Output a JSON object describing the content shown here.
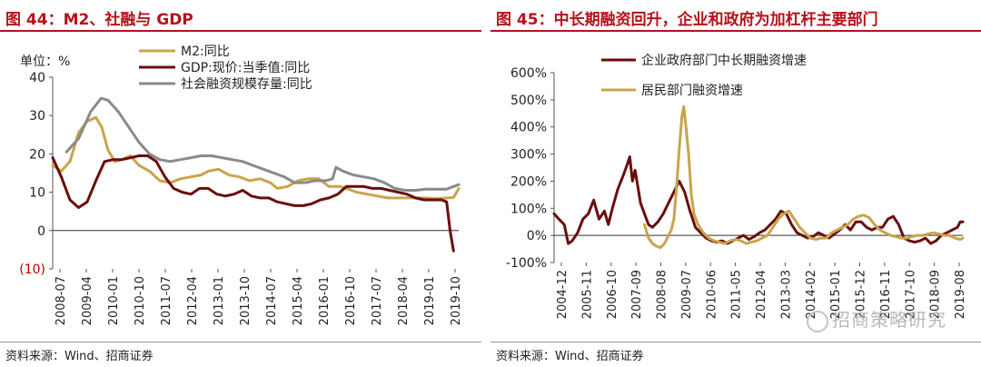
{
  "left": {
    "title": "图 44：M2、社融与 GDP",
    "source": "资料来源：Wind、招商证券",
    "unit_label": "单位：%"
  },
  "right": {
    "title": "图 45：中长期融资回升，企业和政府为加杠杆主要部门",
    "source": "资料来源：Wind、招商证券",
    "watermark": "招商策略研究"
  },
  "colors": {
    "accent": "#b5121b",
    "m2": "#c9a44a",
    "gdp": "#6b0d0d",
    "social": "#8a8a8a",
    "negative_tick": "#c00000"
  },
  "chart_data": [
    {
      "type": "line",
      "ylim": [
        -10,
        40
      ],
      "yticks": [
        -10,
        0,
        10,
        20,
        30,
        40
      ],
      "ytick_labels": [
        "(10)",
        "0",
        "10",
        "20",
        "30",
        "40"
      ],
      "xlim": [
        2008.5,
        2020.25
      ],
      "xtick_labels": [
        "2008-07",
        "2009-04",
        "2010-01",
        "2010-10",
        "2011-07",
        "2012-04",
        "2013-01",
        "2013-10",
        "2014-07",
        "2015-04",
        "2016-01",
        "2016-10",
        "2017-07",
        "2018-04",
        "2019-01",
        "2019-10"
      ],
      "legend": "top-center",
      "series": [
        {
          "name": "M2:同比",
          "color": "#c9a44a",
          "x": [
            2008.5,
            2008.75,
            2009.0,
            2009.25,
            2009.5,
            2009.75,
            2009.92,
            2010.1,
            2010.3,
            2010.5,
            2010.75,
            2011.0,
            2011.3,
            2011.6,
            2011.9,
            2012.2,
            2012.5,
            2012.8,
            2013.0,
            2013.3,
            2013.6,
            2013.9,
            2014.2,
            2014.5,
            2014.8,
            2015.0,
            2015.3,
            2015.6,
            2015.9,
            2016.2,
            2016.5,
            2016.8,
            2017.0,
            2017.3,
            2017.6,
            2017.9,
            2018.2,
            2018.5,
            2018.8,
            2019.0,
            2019.3,
            2019.6,
            2019.9,
            2020.1,
            2020.25
          ],
          "y": [
            17,
            15.5,
            18,
            25.5,
            28.5,
            29.5,
            27,
            21,
            18,
            18.5,
            19.5,
            17,
            15.5,
            13,
            12.5,
            13.5,
            14,
            14.5,
            15.5,
            16,
            14.5,
            14,
            13,
            13.5,
            12.5,
            11,
            11.5,
            13,
            13.5,
            13.5,
            11.5,
            11.5,
            11,
            10,
            9.5,
            9,
            8.5,
            8.5,
            8.5,
            8.5,
            8.5,
            8.3,
            8.5,
            8.6,
            11
          ]
        },
        {
          "name": "GDP:现价:当季值:同比",
          "color": "#6b0d0d",
          "x": [
            2008.5,
            2008.75,
            2009.0,
            2009.25,
            2009.5,
            2009.75,
            2010.0,
            2010.25,
            2010.5,
            2010.75,
            2011.0,
            2011.25,
            2011.5,
            2011.75,
            2012.0,
            2012.25,
            2012.5,
            2012.75,
            2013.0,
            2013.25,
            2013.5,
            2013.75,
            2014.0,
            2014.25,
            2014.5,
            2014.75,
            2015.0,
            2015.25,
            2015.5,
            2015.75,
            2016.0,
            2016.25,
            2016.5,
            2016.75,
            2017.0,
            2017.25,
            2017.5,
            2017.75,
            2018.0,
            2018.25,
            2018.5,
            2018.75,
            2019.0,
            2019.25,
            2019.5,
            2019.75,
            2019.9,
            2020.0,
            2020.1
          ],
          "y": [
            19,
            14,
            8,
            6,
            7.5,
            13,
            18,
            18.5,
            18.5,
            19,
            19.5,
            19.5,
            18,
            14,
            11,
            10,
            9.5,
            11,
            11,
            9.5,
            9,
            9.5,
            10.5,
            9,
            8.5,
            8.5,
            7.5,
            7,
            6.5,
            6.5,
            7,
            8,
            8.5,
            9.5,
            11.5,
            11.5,
            11.5,
            11,
            11,
            10.5,
            10,
            9.5,
            8.5,
            8,
            8,
            8,
            7.5,
            0,
            -5.3
          ]
        },
        {
          "name": "社会融资规模存量:同比",
          "color": "#8a8a8a",
          "x": [
            2008.9,
            2009.25,
            2009.6,
            2009.9,
            2010.1,
            2010.4,
            2010.7,
            2011.0,
            2011.3,
            2011.6,
            2011.9,
            2012.2,
            2012.5,
            2012.8,
            2013.1,
            2013.4,
            2013.7,
            2014.0,
            2014.3,
            2014.6,
            2014.9,
            2015.2,
            2015.5,
            2015.8,
            2016.1,
            2016.4,
            2016.6,
            2016.7,
            2016.9,
            2017.2,
            2017.5,
            2017.8,
            2018.1,
            2018.4,
            2018.7,
            2019.0,
            2019.3,
            2019.6,
            2019.9,
            2020.25
          ],
          "y": [
            20.5,
            24,
            31,
            34.5,
            34,
            31,
            27,
            23,
            20,
            18.5,
            18,
            18.5,
            19,
            19.5,
            19.5,
            19,
            18.5,
            18,
            17,
            16,
            15,
            14,
            12.5,
            12.5,
            13,
            13,
            13.5,
            16.5,
            15.5,
            14.5,
            14,
            13.5,
            12.5,
            11,
            10.5,
            10.5,
            10.8,
            10.8,
            10.8,
            12
          ]
        }
      ]
    },
    {
      "type": "line",
      "ylim": [
        -100,
        600
      ],
      "yticks": [
        -100,
        0,
        100,
        200,
        300,
        400,
        500,
        600
      ],
      "ytick_labels": [
        "-100%",
        "0%",
        "100%",
        "200%",
        "300%",
        "400%",
        "500%",
        "600%"
      ],
      "xlim": [
        2004.92,
        2020.2
      ],
      "xtick_labels": [
        "2004-12",
        "2005-11",
        "2006-10",
        "2007-09",
        "2008-08",
        "2009-07",
        "2010-06",
        "2011-05",
        "2012-04",
        "2013-03",
        "2014-02",
        "2015-01",
        "2015-12",
        "2016-11",
        "2017-10",
        "2018-09",
        "2019-08"
      ],
      "legend": "top-left",
      "series": [
        {
          "name": "企业政府部门中长期融资增速",
          "color": "#6b0d0d",
          "x": [
            2004.92,
            2005.1,
            2005.3,
            2005.45,
            2005.6,
            2005.8,
            2006.0,
            2006.2,
            2006.4,
            2006.6,
            2006.8,
            2006.95,
            2007.1,
            2007.3,
            2007.5,
            2007.65,
            2007.75,
            2007.85,
            2007.95,
            2008.05,
            2008.15,
            2008.3,
            2008.45,
            2008.6,
            2008.8,
            2009.0,
            2009.2,
            2009.4,
            2009.6,
            2009.8,
            2010.0,
            2010.1,
            2010.2,
            2010.4,
            2010.6,
            2010.8,
            2011.0,
            2011.2,
            2011.4,
            2011.6,
            2011.8,
            2012.0,
            2012.2,
            2012.4,
            2012.6,
            2012.8,
            2013.0,
            2013.2,
            2013.4,
            2013.6,
            2013.8,
            2014.0,
            2014.2,
            2014.4,
            2014.6,
            2014.8,
            2015.0,
            2015.2,
            2015.4,
            2015.6,
            2015.8,
            2016.0,
            2016.2,
            2016.4,
            2016.6,
            2016.8,
            2017.0,
            2017.2,
            2017.4,
            2017.6,
            2017.8,
            2018.0,
            2018.2,
            2018.4,
            2018.6,
            2018.8,
            2019.0,
            2019.2,
            2019.4,
            2019.6,
            2019.8,
            2020.0,
            2020.1,
            2020.2
          ],
          "y": [
            80,
            60,
            40,
            -30,
            -20,
            10,
            60,
            80,
            130,
            60,
            90,
            40,
            100,
            170,
            220,
            260,
            290,
            200,
            240,
            180,
            120,
            80,
            40,
            30,
            50,
            80,
            120,
            160,
            200,
            160,
            90,
            60,
            30,
            10,
            -10,
            -20,
            -25,
            -20,
            -30,
            -20,
            -10,
            0,
            -15,
            -5,
            10,
            20,
            40,
            60,
            90,
            80,
            40,
            10,
            0,
            -10,
            -5,
            10,
            0,
            -10,
            5,
            20,
            40,
            20,
            50,
            50,
            30,
            20,
            30,
            30,
            60,
            70,
            40,
            -10,
            -20,
            -25,
            -20,
            -10,
            -30,
            -20,
            0,
            10,
            20,
            30,
            50,
            50
          ]
        },
        {
          "name": "居民部门融资增速",
          "color": "#c9a44a",
          "x": [
            2008.3,
            2008.45,
            2008.6,
            2008.75,
            2008.9,
            2009.05,
            2009.2,
            2009.3,
            2009.4,
            2009.5,
            2009.6,
            2009.7,
            2009.77,
            2009.85,
            2009.95,
            2010.05,
            2010.15,
            2010.3,
            2010.5,
            2010.7,
            2010.9,
            2011.1,
            2011.3,
            2011.5,
            2011.7,
            2011.9,
            2012.1,
            2012.3,
            2012.5,
            2012.7,
            2012.9,
            2013.1,
            2013.3,
            2013.5,
            2013.7,
            2013.9,
            2014.1,
            2014.3,
            2014.5,
            2014.7,
            2014.9,
            2015.1,
            2015.3,
            2015.5,
            2015.7,
            2015.9,
            2016.1,
            2016.3,
            2016.5,
            2016.7,
            2016.9,
            2017.1,
            2017.3,
            2017.5,
            2017.7,
            2017.9,
            2018.1,
            2018.3,
            2018.5,
            2018.7,
            2018.9,
            2019.1,
            2019.3,
            2019.5,
            2019.7,
            2019.9,
            2020.1,
            2020.2
          ],
          "y": [
            40,
            -10,
            -30,
            -40,
            -45,
            -30,
            0,
            20,
            60,
            180,
            320,
            440,
            475,
            400,
            300,
            150,
            80,
            40,
            10,
            -10,
            -20,
            -25,
            -30,
            -20,
            -15,
            -20,
            -30,
            -25,
            -20,
            -10,
            0,
            30,
            60,
            80,
            90,
            60,
            30,
            10,
            -10,
            -15,
            -10,
            -10,
            10,
            20,
            30,
            40,
            60,
            70,
            75,
            65,
            40,
            20,
            10,
            0,
            -5,
            -10,
            -10,
            -5,
            0,
            0,
            5,
            10,
            5,
            0,
            0,
            -10,
            -15,
            -10
          ]
        }
      ]
    }
  ]
}
